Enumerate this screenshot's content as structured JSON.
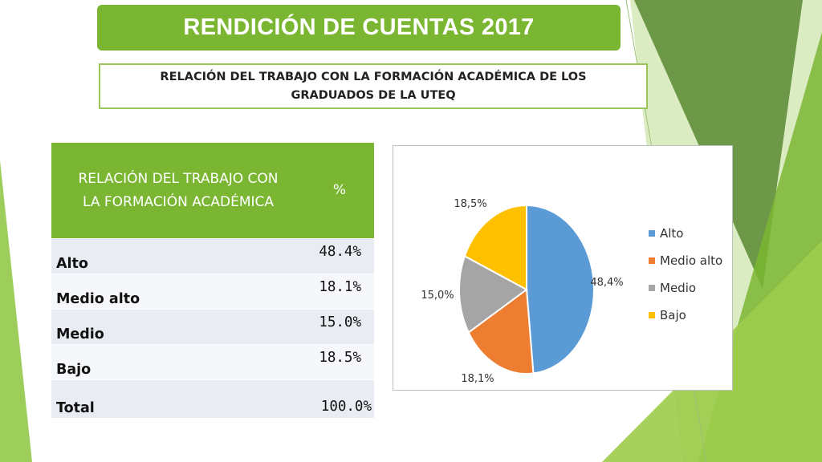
{
  "slide": {
    "title": "RENDICIÓN DE CUENTAS 2017",
    "subtitle_line1": "RELACIÓN DEL TRABAJO CON LA FORMACIÓN ACADÉMICA DE LOS",
    "subtitle_line2": "GRADUADOS DE LA UTEQ"
  },
  "table": {
    "header_label_line1": "RELACIÓN DEL TRABAJO CON",
    "header_label_line2": "LA FORMACIÓN ACADÉMICA",
    "header_value": "%",
    "rows": [
      {
        "label": "Alto",
        "value": "48.4%"
      },
      {
        "label": "Medio alto",
        "value": "18.1%"
      },
      {
        "label": "Medio",
        "value": "15.0%"
      },
      {
        "label": "Bajo",
        "value": "18.5%"
      }
    ],
    "total": {
      "label": "Total",
      "value": "100.0%"
    }
  },
  "colors": {
    "banner_green": "#7ab632",
    "alto": "#5b9bd5",
    "medio_alto": "#ed7d31",
    "medio": "#a5a5a5",
    "bajo": "#ffc000"
  },
  "chart_data": {
    "type": "pie",
    "categories": [
      "Alto",
      "Medio alto",
      "Medio",
      "Bajo"
    ],
    "values": [
      48.4,
      18.1,
      15.0,
      18.5
    ],
    "data_labels": [
      "48,4%",
      "18,1%",
      "15,0%",
      "18,5%"
    ],
    "colors": [
      "#5b9bd5",
      "#ed7d31",
      "#a5a5a5",
      "#ffc000"
    ],
    "legend_position": "right"
  }
}
